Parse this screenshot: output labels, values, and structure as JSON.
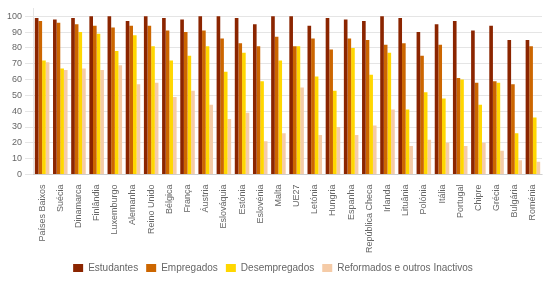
{
  "chart_data": {
    "type": "bar",
    "categories": [
      "Países Baixos",
      "Suécia",
      "Dinamarca",
      "Finlândia",
      "Luxemburgo",
      "Alemanha",
      "Reino Unido",
      "Bélgica",
      "França",
      "Áustria",
      "Eslováquia",
      "Estónia",
      "Eslovénia",
      "Malta",
      "UE27",
      "Letónia",
      "Hungria",
      "Espanha",
      "República Checa",
      "Irlanda",
      "Lituânia",
      "Polónia",
      "Itália",
      "Portugal",
      "Chipre",
      "Grécia",
      "Bulgária",
      "Roménia"
    ],
    "series": [
      {
        "name": "Estudantes",
        "color": "#8B2500",
        "values": [
          99,
          98,
          99,
          100,
          100,
          97,
          100,
          99,
          98,
          100,
          100,
          99,
          95,
          100,
          100,
          94,
          99,
          98,
          97,
          100,
          99,
          90,
          95,
          97,
          91,
          94,
          85,
          85
        ]
      },
      {
        "name": "Empregados",
        "color": "#CC6600",
        "values": [
          97,
          96,
          95,
          94,
          93,
          94,
          94,
          91,
          90,
          91,
          86,
          83,
          81,
          87,
          81,
          86,
          79,
          86,
          85,
          82,
          83,
          75,
          82,
          61,
          58,
          59,
          57,
          81
        ]
      },
      {
        "name": "Desempregados",
        "color": "#FFD700",
        "values": [
          72,
          67,
          90,
          89,
          78,
          88,
          81,
          72,
          75,
          81,
          65,
          77,
          59,
          72,
          81,
          62,
          53,
          80,
          63,
          77,
          41,
          52,
          48,
          60,
          44,
          58,
          26,
          36
        ]
      },
      {
        "name": "Reformados e outros Inactivos",
        "color": "#F5CBA7",
        "values": [
          71,
          66,
          67,
          66,
          69,
          57,
          58,
          49,
          53,
          44,
          35,
          39,
          21,
          26,
          55,
          25,
          30,
          25,
          31,
          41,
          18,
          22,
          20,
          18,
          20,
          15,
          9,
          8
        ]
      }
    ],
    "ylim": [
      0,
      105
    ],
    "yticks": [
      0,
      10,
      20,
      30,
      40,
      50,
      60,
      70,
      80,
      90,
      100
    ],
    "grid": true,
    "legend": "bottom"
  }
}
